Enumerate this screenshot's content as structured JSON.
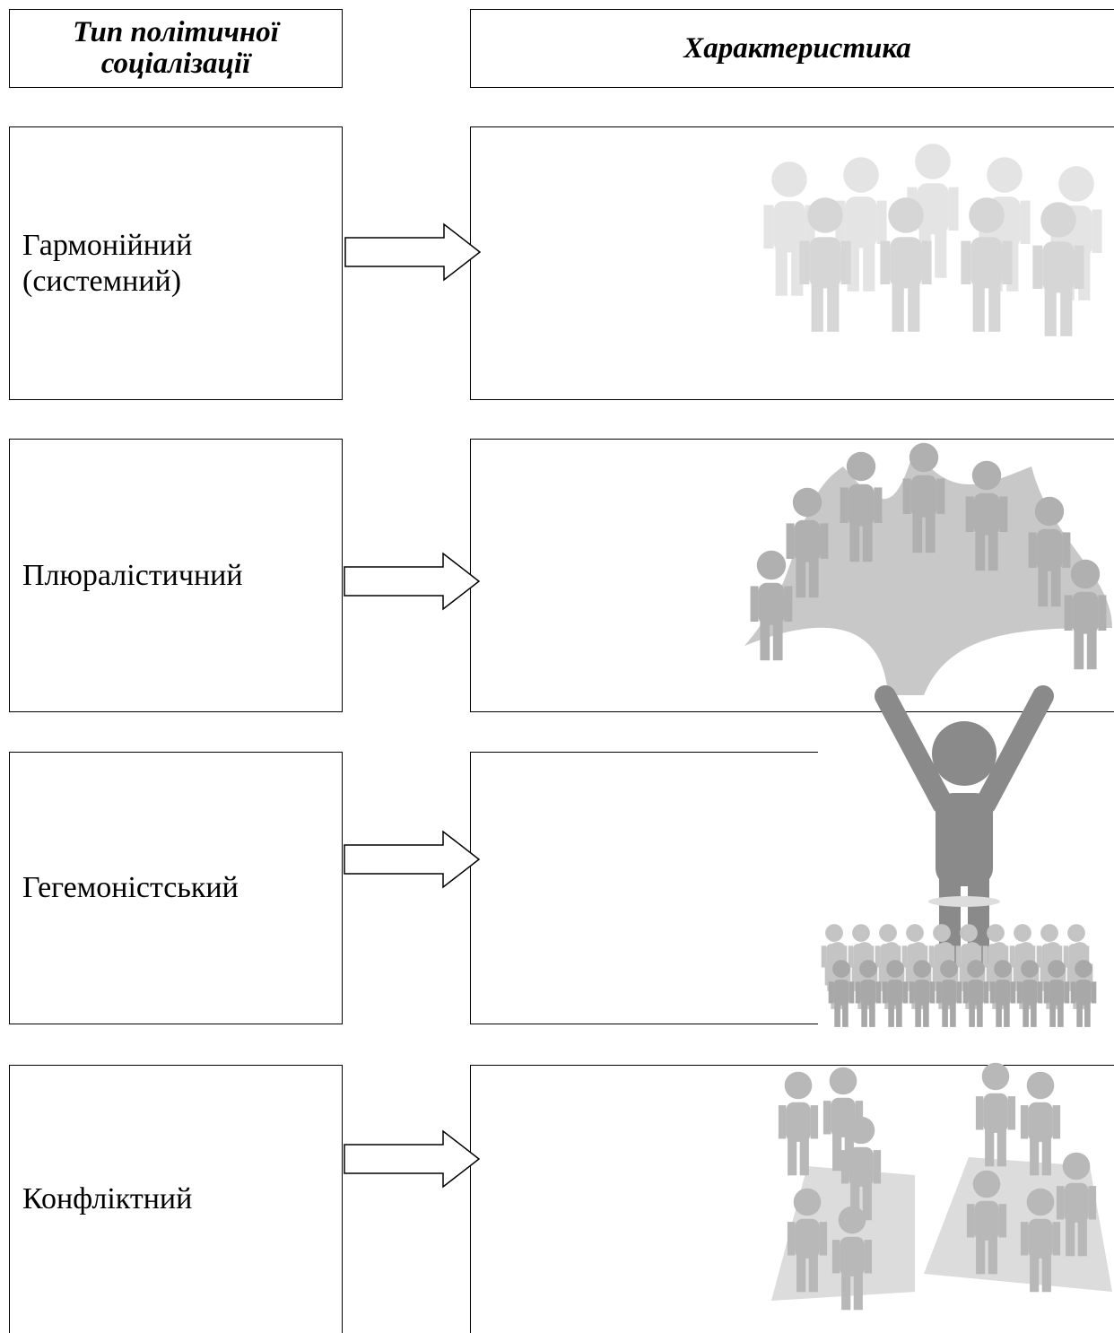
{
  "header": {
    "type_column": "Тип політичної соціалізації",
    "characteristic_column": "Характеристика"
  },
  "rows": [
    {
      "label": "Гармонійний (системний)"
    },
    {
      "label": "Плюралістичний"
    },
    {
      "label": "Гегемоністський"
    },
    {
      "label": "Конфліктний"
    }
  ]
}
